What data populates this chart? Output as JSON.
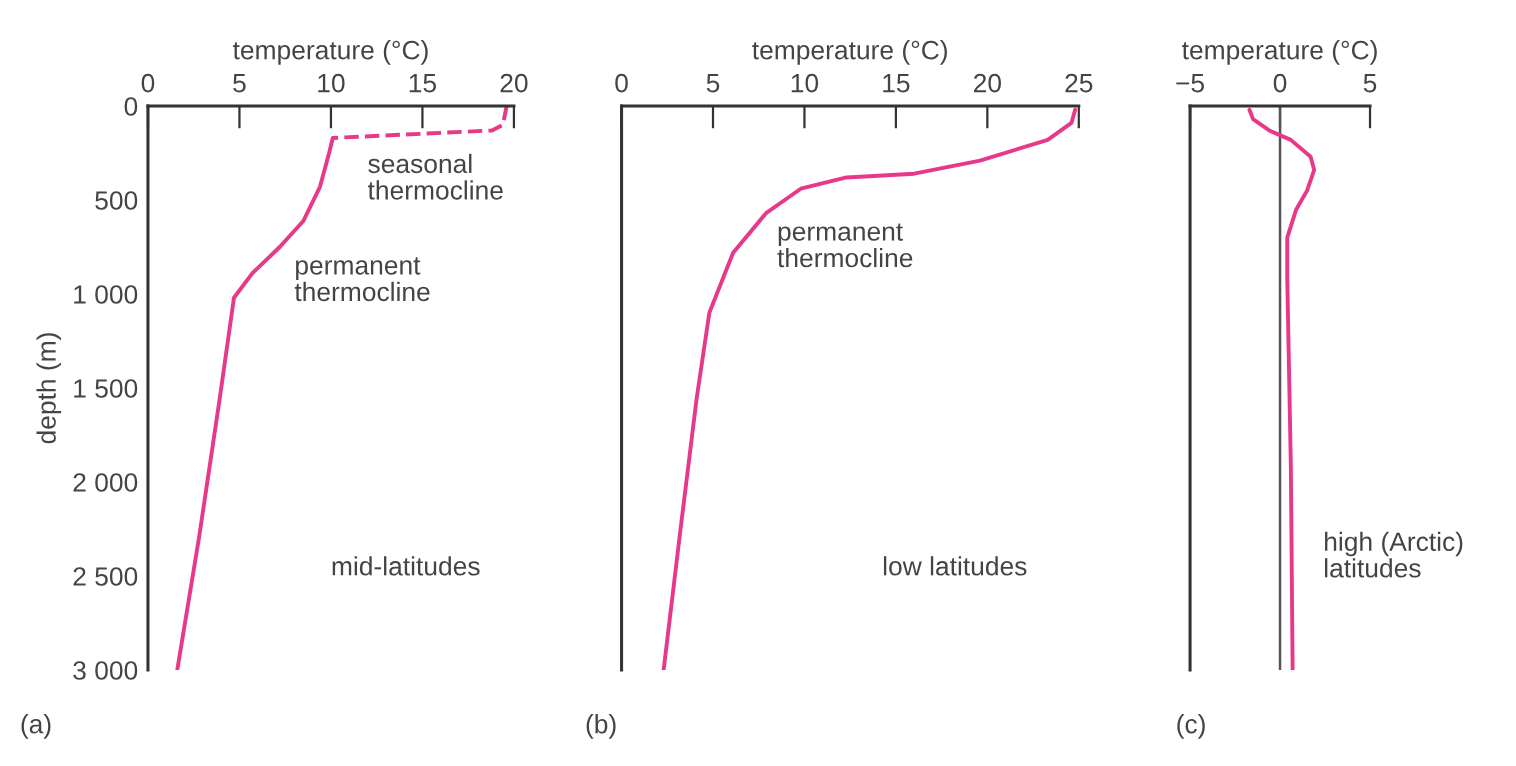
{
  "chart_data": [
    {
      "type": "line",
      "xlabel": "temperature (°C)",
      "ylabel": "depth (m)",
      "xlim": [
        0,
        20
      ],
      "xticks": [
        0,
        5,
        10,
        15,
        20
      ],
      "ylim": [
        3000,
        0
      ],
      "yticks": [
        0,
        500,
        {
          "value": 1000,
          "label": "1 000"
        },
        {
          "value": 1500,
          "label": "1 500"
        },
        {
          "value": 2000,
          "label": "2 000"
        },
        {
          "value": 2500,
          "label": "2 500"
        },
        {
          "value": 3000,
          "label": "3 000"
        }
      ],
      "grid": false,
      "legend": false,
      "series": [
        {
          "color": "#e8388a",
          "line_style": "dashed",
          "x": [
            19.6,
            19.4,
            18.8,
            10.1
          ],
          "values": [
            0,
            100,
            130,
            170
          ]
        },
        {
          "color": "#e8388a",
          "line_style": "solid",
          "x": [
            10.1,
            9.9,
            9.4,
            8.5,
            7.2,
            5.7,
            4.7,
            3.9,
            2.8,
            1.6
          ],
          "values": [
            170,
            250,
            430,
            610,
            750,
            890,
            1020,
            1570,
            2290,
            3000
          ]
        }
      ],
      "annotations": [
        "seasonal\nthermocline",
        "permanent\nthermocline",
        "mid-latitudes",
        "(a)"
      ]
    },
    {
      "type": "line",
      "xlabel": "temperature (°C)",
      "xlim": [
        0,
        25
      ],
      "xticks": [
        0,
        5,
        10,
        15,
        20,
        25
      ],
      "ylim": [
        3000,
        0
      ],
      "yticks": [
        0,
        500,
        1000,
        1500,
        2000,
        2500,
        3000
      ],
      "tick_labels": "x",
      "grid": false,
      "legend": false,
      "series": [
        {
          "color": "#e8388a",
          "x": [
            24.8,
            24.6,
            23.3,
            19.6,
            16.0,
            12.3,
            9.8,
            7.9,
            6.1,
            4.8,
            4.1,
            3.2,
            2.3
          ],
          "values": [
            20,
            90,
            180,
            290,
            360,
            380,
            440,
            570,
            780,
            1100,
            1560,
            2270,
            3000
          ]
        }
      ],
      "annotations": [
        "permanent\nthermocline",
        "low latitudes",
        "(b)"
      ]
    },
    {
      "type": "line",
      "xlabel": "temperature (°C)",
      "xlim": [
        -5,
        5
      ],
      "xticks": [
        {
          "value": -5,
          "label": "−5"
        },
        0,
        5
      ],
      "ylim": [
        3000,
        0
      ],
      "yticks": [
        0,
        500,
        1000,
        1500,
        2000,
        2500,
        3000
      ],
      "tick_labels": "x",
      "grid": false,
      "legend": false,
      "ref_lines": [
        {
          "axis": "x",
          "value": 0,
          "color": "#555555"
        }
      ],
      "series": [
        {
          "color": "#e8388a",
          "x": [
            -1.7,
            -1.5,
            -0.6,
            0.6,
            1.7,
            1.9,
            1.5,
            0.9,
            0.4,
            0.4,
            0.6,
            0.7
          ],
          "values": [
            20,
            70,
            130,
            180,
            270,
            340,
            450,
            550,
            700,
            910,
            1910,
            3000
          ]
        }
      ],
      "annotations": [
        "high (Arctic)\nlatitudes",
        "(c)"
      ]
    }
  ]
}
